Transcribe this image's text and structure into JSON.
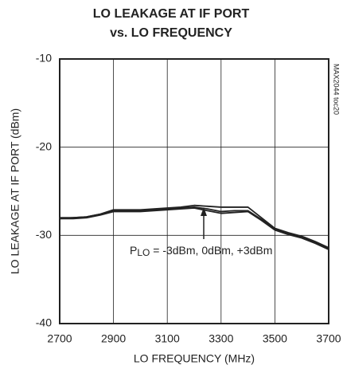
{
  "chart_data": {
    "type": "line",
    "title": [
      "LO LEAKAGE AT IF PORT",
      "vs. LO FREQUENCY"
    ],
    "xlabel": "LO FREQUENCY (MHz)",
    "ylabel": "LO LEAKAGE AT IF PORT (dBm)",
    "side_note": "MAX2044 toc20",
    "annotation": [
      "P",
      "LO",
      " = -3dBm, 0dBm, +3dBm"
    ],
    "x": [
      2700,
      2750,
      2800,
      2850,
      2900,
      2950,
      3000,
      3050,
      3100,
      3150,
      3200,
      3250,
      3300,
      3350,
      3400,
      3450,
      3500,
      3550,
      3600,
      3650,
      3700
    ],
    "series": [
      {
        "color": "#222222",
        "values": [
          -28.0,
          -28.0,
          -27.9,
          -27.6,
          -27.1,
          -27.1,
          -27.1,
          -27.0,
          -26.9,
          -26.8,
          -26.6,
          -26.7,
          -26.8,
          -26.8,
          -26.8,
          -28.0,
          -29.2,
          -29.7,
          -30.1,
          -30.7,
          -31.4
        ]
      },
      {
        "color": "#222222",
        "values": [
          -28.1,
          -28.0,
          -27.9,
          -27.6,
          -27.2,
          -27.2,
          -27.2,
          -27.1,
          -27.0,
          -26.9,
          -26.8,
          -27.0,
          -27.3,
          -27.2,
          -27.2,
          -28.2,
          -29.3,
          -29.8,
          -30.2,
          -30.8,
          -31.5
        ]
      },
      {
        "color": "#222222",
        "values": [
          -28.1,
          -28.1,
          -28.0,
          -27.7,
          -27.3,
          -27.3,
          -27.3,
          -27.2,
          -27.1,
          -27.0,
          -26.9,
          -27.2,
          -27.5,
          -27.4,
          -27.3,
          -28.3,
          -29.4,
          -29.9,
          -30.3,
          -30.9,
          -31.6
        ]
      }
    ],
    "xlim": [
      2700,
      3700
    ],
    "xticks": [
      2700,
      2900,
      3100,
      3300,
      3500,
      3700
    ],
    "ylim": [
      -40,
      -10
    ],
    "yticks": [
      -40,
      -30,
      -20,
      -10
    ],
    "grid": true
  }
}
